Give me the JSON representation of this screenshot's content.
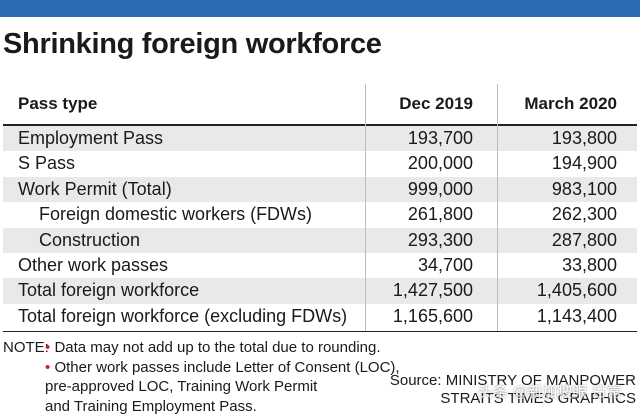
{
  "colors": {
    "top_bar": "#2a6db5",
    "bullet": "#d0251c",
    "row_shade": "#e9e9e9"
  },
  "title": "Shrinking foreign workforce",
  "chart_data": {
    "type": "table",
    "title": "Shrinking foreign workforce",
    "columns": [
      "Pass type",
      "Dec 2019",
      "March 2020"
    ],
    "rows": [
      {
        "label": "Employment Pass",
        "indent": false,
        "values": [
          "193,700",
          "193,800"
        ]
      },
      {
        "label": "S Pass",
        "indent": false,
        "values": [
          "200,000",
          "194,900"
        ]
      },
      {
        "label": "Work Permit (Total)",
        "indent": false,
        "values": [
          "999,000",
          "983,100"
        ]
      },
      {
        "label": "Foreign domestic workers (FDWs)",
        "indent": true,
        "values": [
          "261,800",
          "262,300"
        ]
      },
      {
        "label": "Construction",
        "indent": true,
        "values": [
          "293,300",
          "287,800"
        ]
      },
      {
        "label": "Other work passes",
        "indent": false,
        "values": [
          "34,700",
          "33,800"
        ]
      },
      {
        "label": "Total foreign workforce",
        "indent": false,
        "values": [
          "1,427,500",
          "1,405,600"
        ]
      },
      {
        "label": "Total foreign workforce (excluding FDWs)",
        "indent": false,
        "values": [
          "1,165,600",
          "1,143,400"
        ]
      }
    ]
  },
  "notes": {
    "label": "NOTE:",
    "bullet": "•",
    "note1": "Data may not add up to the total due to rounding.",
    "note2_lines": [
      "Other work passes include Letter of Consent (LOC),",
      "pre-approved LOC, Training Work Permit",
      "and Training Employment Pass."
    ]
  },
  "source": {
    "line1": "Source: MINISTRY OF MANPOWER",
    "line2": "STRAITS TIMES GRAPHICS"
  },
  "watermark": "头条 @新加坡眼 日常"
}
